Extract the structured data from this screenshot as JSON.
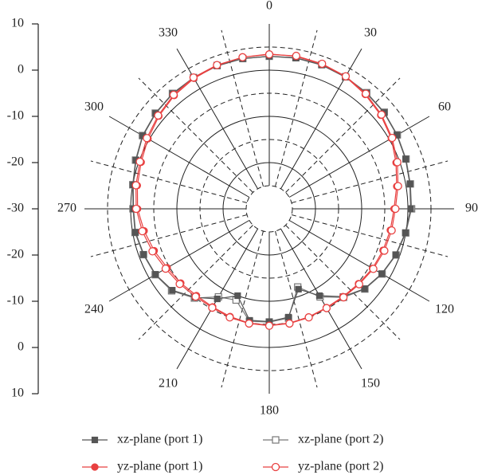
{
  "chart_data": {
    "type": "polar",
    "theta": [
      0,
      10,
      20,
      30,
      40,
      50,
      60,
      70,
      80,
      90,
      100,
      110,
      120,
      130,
      140,
      150,
      160,
      170,
      180,
      190,
      200,
      210,
      220,
      230,
      240,
      250,
      260,
      270,
      280,
      290,
      300,
      310,
      320,
      330,
      340,
      350
    ],
    "thetaticks": [
      0,
      30,
      60,
      90,
      120,
      150,
      180,
      210,
      240,
      270,
      300,
      330
    ],
    "rlim": [
      -30,
      10
    ],
    "rticks": [
      -30,
      -20,
      -10,
      0,
      10
    ],
    "rgrid": [
      -25,
      -20,
      -15,
      -10,
      -5,
      0,
      5
    ],
    "series": [
      {
        "name": "xz-plane (port 2)",
        "color": "#777777",
        "marker": "square-open",
        "values": [
          3,
          3.2,
          3.2,
          3,
          2.8,
          2.5,
          2,
          1.5,
          1,
          0.8,
          0,
          -0.8,
          -1.8,
          -3,
          -5,
          -8,
          -12,
          -6,
          -5.5,
          -5.3,
          -9,
          -8,
          -4.8,
          -2.4,
          -1.5,
          -1,
          -0.5,
          -0.5,
          0,
          0.8,
          1.7,
          2.2,
          2.6,
          2.8,
          3,
          3
        ]
      },
      {
        "name": "xz-plane (port 1)",
        "color": "#555555",
        "marker": "square",
        "values": [
          3,
          3.1,
          3.1,
          2.9,
          2.7,
          2.4,
          1.9,
          1.4,
          0.9,
          0.6,
          -0.1,
          -0.9,
          -1.9,
          -3.1,
          -5.2,
          -8.3,
          -11.5,
          -6.2,
          -5.6,
          -5.5,
          -10,
          -7.5,
          -5,
          -2.6,
          -1.6,
          -1.1,
          -0.6,
          -0.6,
          -0.1,
          0.7,
          1.6,
          2.1,
          2.5,
          2.7,
          2.9,
          3
        ]
      },
      {
        "name": "yz-plane (port 1)",
        "color": "#e84040",
        "marker": "circle",
        "values": [
          3.5,
          3.5,
          3.3,
          3,
          2.3,
          1.5,
          0.5,
          -0.8,
          -2,
          -3,
          -3.4,
          -3.8,
          -4.2,
          -4.8,
          -5.2,
          -5.3,
          -5.1,
          -4.9,
          -4.8,
          -4.9,
          -5.2,
          -5.5,
          -5.5,
          -5,
          -4.5,
          -3.5,
          -2.5,
          -1.5,
          -1,
          -0.5,
          0.3,
          1.2,
          2,
          2.6,
          3,
          3.3
        ]
      },
      {
        "name": "yz-plane (port 2)",
        "color": "#e84040",
        "marker": "circle-open",
        "values": [
          3.4,
          3.6,
          3.4,
          3.1,
          2.5,
          1.7,
          0.7,
          -0.5,
          -1.7,
          -2.7,
          -3.1,
          -3.5,
          -4,
          -4.6,
          -5,
          -5.2,
          -5,
          -4.8,
          -4.7,
          -4.8,
          -5,
          -5.3,
          -5.2,
          -4.7,
          -4.1,
          -3.1,
          -2.1,
          -1.2,
          -0.7,
          -0.2,
          0.6,
          1.4,
          2.2,
          2.8,
          3.1,
          3.3
        ]
      }
    ]
  }
}
